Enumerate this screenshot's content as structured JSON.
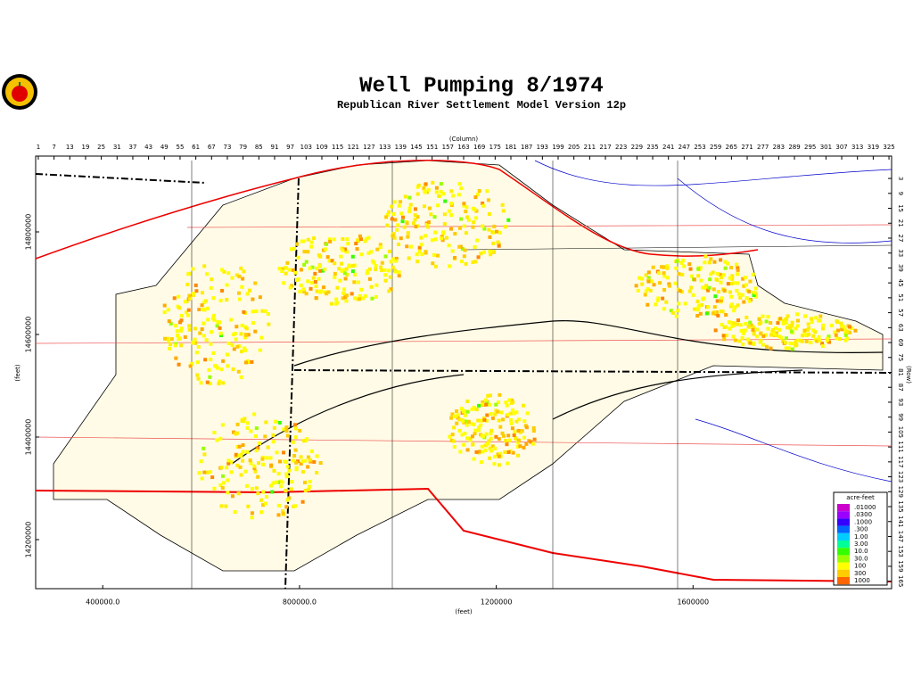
{
  "header": {
    "title": "Well Pumping  8/1974",
    "subtitle": "Republican River Settlement Model Version 12p"
  },
  "map": {
    "column_axis": {
      "label": "(Column)",
      "lim": [
        0,
        326
      ],
      "ticks": [
        1,
        7,
        13,
        19,
        25,
        31,
        37,
        43,
        49,
        55,
        61,
        67,
        73,
        79,
        85,
        91,
        97,
        103,
        109,
        115,
        121,
        127,
        133,
        139,
        145,
        151,
        157,
        163,
        169,
        175,
        181,
        187,
        193,
        199,
        205,
        211,
        217,
        223,
        229,
        235,
        241,
        247,
        253,
        259,
        265,
        271,
        277,
        283,
        289,
        295,
        301,
        307,
        313,
        319,
        325
      ]
    },
    "row_axis": {
      "label": "(Row)",
      "lim": [
        -6,
        168
      ],
      "ticks": [
        3,
        9,
        15,
        21,
        27,
        33,
        39,
        45,
        51,
        57,
        63,
        69,
        75,
        81,
        87,
        93,
        99,
        105,
        111,
        117,
        123,
        129,
        135,
        141,
        147,
        153,
        159,
        165
      ]
    },
    "x_axis": {
      "label": "(feet)",
      "xlim": [
        263636,
        2003636
      ],
      "xticks": [
        {
          "value": 400000,
          "label": "400000.0"
        },
        {
          "value": 800000,
          "label": "800000.0"
        },
        1200000,
        1600000
      ]
    },
    "y_axis": {
      "label": "(feet)",
      "ylim": [
        14104348,
        14947826
      ],
      "yticks": [
        14200000,
        14400000,
        14600000,
        14800000
      ]
    },
    "legend": {
      "title": "acre-feet",
      "items": [
        {
          "label": ".01000",
          "color": "#cc00cc"
        },
        {
          "label": ".0300",
          "color": "#9900ff"
        },
        {
          "label": ".1000",
          "color": "#3300ff"
        },
        {
          "label": ".300",
          "color": "#0066ff"
        },
        {
          "label": "1.00",
          "color": "#00ccff"
        },
        {
          "label": "3.00",
          "color": "#00ff99"
        },
        {
          "label": "10.0",
          "color": "#33ff00"
        },
        {
          "label": "30.0",
          "color": "#99ff00"
        },
        {
          "label": "100",
          "color": "#ffff00"
        },
        {
          "label": "300",
          "color": "#ffcc00"
        },
        {
          "label": "1000",
          "color": "#ff6600"
        }
      ]
    }
  }
}
